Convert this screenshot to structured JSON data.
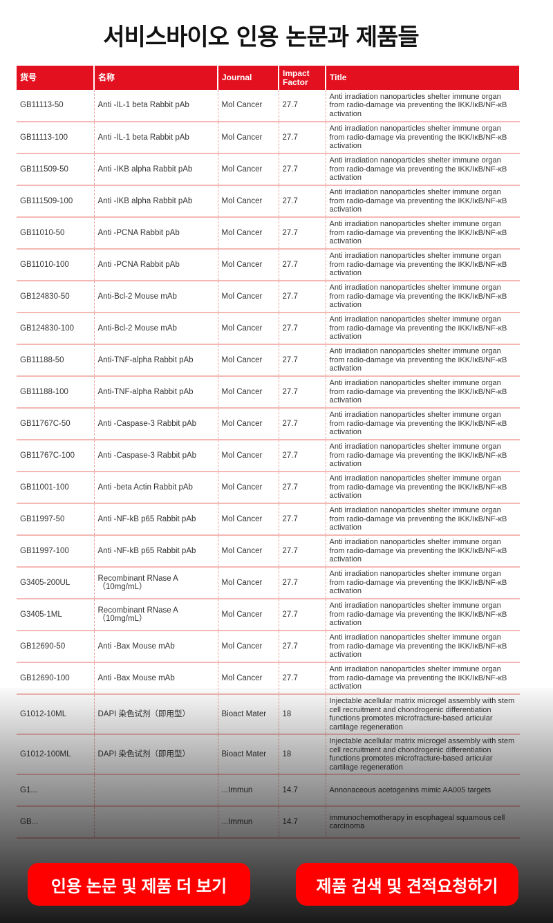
{
  "page_title": "서비스바이오 인용 논문과 제품들",
  "table": {
    "headers": [
      "货号",
      "名称",
      "Journal",
      "Impact Factor",
      "Title"
    ],
    "rows": [
      [
        "GB11113-50",
        "Anti -IL-1 beta Rabbit pAb",
        "Mol Cancer",
        "27.7",
        "Anti irradiation nanoparticles shelter immune organ from radio-damage via preventing the IKK/IκB/NF-κB activation"
      ],
      [
        "GB11113-100",
        "Anti -IL-1 beta Rabbit pAb",
        "Mol Cancer",
        "27.7",
        "Anti irradiation nanoparticles shelter immune organ from radio-damage via preventing the IKK/IκB/NF-κB activation"
      ],
      [
        "GB111509-50",
        "Anti -IKB alpha Rabbit pAb",
        "Mol Cancer",
        "27.7",
        "Anti irradiation nanoparticles shelter immune organ from radio-damage via preventing the IKK/IκB/NF-κB activation"
      ],
      [
        "GB111509-100",
        "Anti -IKB alpha Rabbit pAb",
        "Mol Cancer",
        "27.7",
        "Anti irradiation nanoparticles shelter immune organ from radio-damage via preventing the IKK/IκB/NF-κB activation"
      ],
      [
        "GB11010-50",
        "Anti -PCNA Rabbit pAb",
        "Mol Cancer",
        "27.7",
        "Anti irradiation nanoparticles shelter immune organ from radio-damage via preventing the IKK/IκB/NF-κB activation"
      ],
      [
        "GB11010-100",
        "Anti -PCNA Rabbit pAb",
        "Mol Cancer",
        "27.7",
        "Anti irradiation nanoparticles shelter immune organ from radio-damage via preventing the IKK/IκB/NF-κB activation"
      ],
      [
        "GB124830-50",
        "Anti-Bcl-2 Mouse mAb",
        "Mol Cancer",
        "27.7",
        "Anti irradiation nanoparticles shelter immune organ from radio-damage via preventing the IKK/IκB/NF-κB activation"
      ],
      [
        "GB124830-100",
        "Anti-Bcl-2 Mouse mAb",
        "Mol Cancer",
        "27.7",
        "Anti irradiation nanoparticles shelter immune organ from radio-damage via preventing the IKK/IκB/NF-κB activation"
      ],
      [
        "GB11188-50",
        "Anti-TNF-alpha Rabbit pAb",
        "Mol Cancer",
        "27.7",
        "Anti irradiation nanoparticles shelter immune organ from radio-damage via preventing the IKK/IκB/NF-κB activation"
      ],
      [
        "GB11188-100",
        "Anti-TNF-alpha Rabbit pAb",
        "Mol Cancer",
        "27.7",
        "Anti irradiation nanoparticles shelter immune organ from radio-damage via preventing the IKK/IκB/NF-κB activation"
      ],
      [
        "GB11767C-50",
        "Anti -Caspase-3 Rabbit pAb",
        "Mol Cancer",
        "27.7",
        "Anti irradiation nanoparticles shelter immune organ from radio-damage via preventing the IKK/IκB/NF-κB activation"
      ],
      [
        "GB11767C-100",
        "Anti -Caspase-3 Rabbit pAb",
        "Mol Cancer",
        "27.7",
        "Anti irradiation nanoparticles shelter immune organ from radio-damage via preventing the IKK/IκB/NF-κB activation"
      ],
      [
        "GB11001-100",
        "Anti -beta Actin Rabbit pAb",
        "Mol Cancer",
        "27.7",
        "Anti irradiation nanoparticles shelter immune organ from radio-damage via preventing the IKK/IκB/NF-κB activation"
      ],
      [
        "GB11997-50",
        "Anti -NF-kB p65 Rabbit pAb",
        "Mol Cancer",
        "27.7",
        "Anti irradiation nanoparticles shelter immune organ from radio-damage via preventing the IKK/IκB/NF-κB activation"
      ],
      [
        "GB11997-100",
        "Anti -NF-kB p65 Rabbit pAb",
        "Mol Cancer",
        "27.7",
        "Anti irradiation nanoparticles shelter immune organ from radio-damage via preventing the IKK/IκB/NF-κB activation"
      ],
      [
        "G3405-200UL",
        "Recombinant RNase A（10mg/mL）",
        "Mol Cancer",
        "27.7",
        "Anti irradiation nanoparticles shelter immune organ from radio-damage via preventing the IKK/IκB/NF-κB activation"
      ],
      [
        "G3405-1ML",
        "Recombinant RNase A（10mg/mL）",
        "Mol Cancer",
        "27.7",
        "Anti irradiation nanoparticles shelter immune organ from radio-damage via preventing the IKK/IκB/NF-κB activation"
      ],
      [
        "GB12690-50",
        "Anti -Bax Mouse mAb",
        "Mol Cancer",
        "27.7",
        "Anti irradiation nanoparticles shelter immune organ from radio-damage via preventing the IKK/IκB/NF-κB activation"
      ],
      [
        "GB12690-100",
        "Anti -Bax Mouse mAb",
        "Mol Cancer",
        "27.7",
        "Anti irradiation nanoparticles shelter immune organ from radio-damage via preventing the IKK/IκB/NF-κB activation"
      ],
      [
        "G1012-10ML",
        "DAPI 染色试剂（即用型）",
        "Bioact Mater",
        "18",
        "Injectable acellular matrix microgel assembly with stem cell recruitment and chondrogenic differentiation functions promotes microfracture-based articular cartilage regeneration"
      ],
      [
        "G1012-100ML",
        "DAPI 染色试剂（即用型）",
        "Bioact Mater",
        "18",
        "Injectable acellular matrix microgel assembly with stem cell recruitment and chondrogenic differentiation functions promotes microfracture-based articular cartilage regeneration"
      ],
      [
        "G1...",
        "",
        "...Immun",
        "14.7",
        "Annonaceous acetogenins mimic AA005 targets"
      ],
      [
        "GB...",
        "",
        "...Immun",
        "14.7",
        "immunochemotherapy in esophageal squamous cell carcinoma"
      ]
    ]
  },
  "buttons": {
    "more_papers": "인용 논문 및 제품 더 보기",
    "search_quote": "제품 검색 및 견적요청하기"
  },
  "colors": {
    "accent": "#e3101f",
    "button": "#ff0000"
  }
}
